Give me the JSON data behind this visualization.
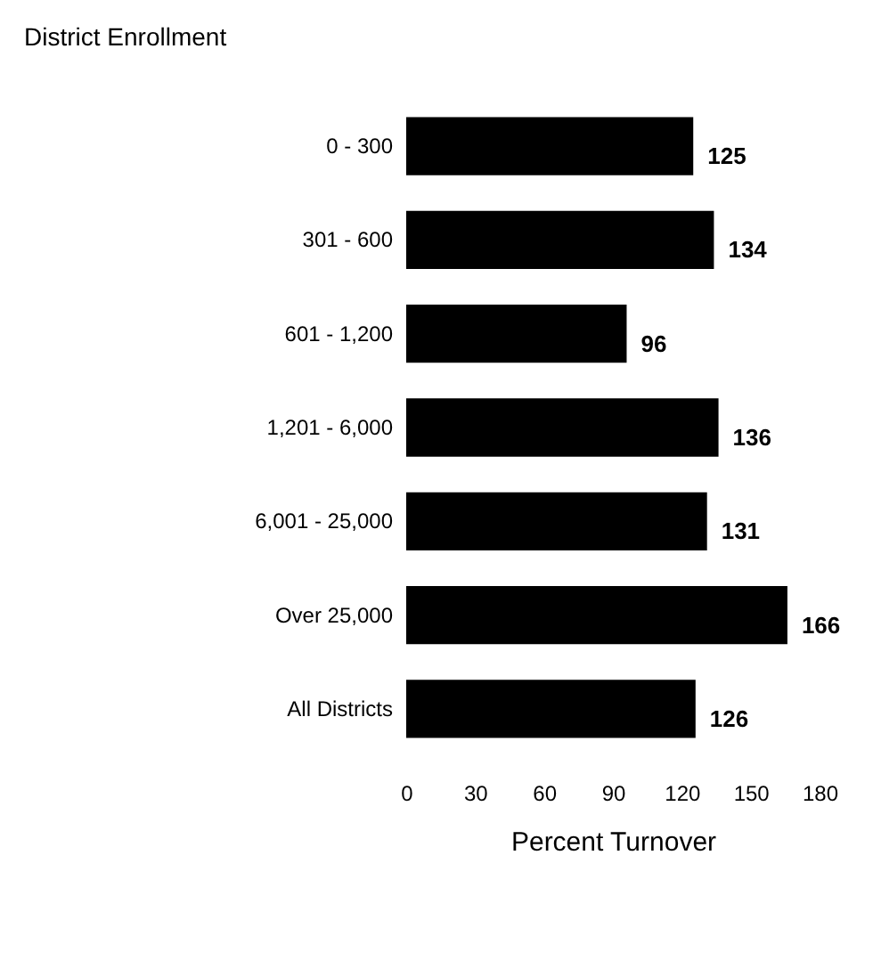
{
  "chart_data": {
    "type": "bar",
    "orientation": "horizontal",
    "ylabel": "District Enrollment",
    "xlabel": "Percent Turnover",
    "categories": [
      "0 - 300",
      "301 - 600",
      "601 - 1,200",
      "1,201 - 6,000",
      "6,001 - 25,000",
      "Over 25,000",
      "All Districts"
    ],
    "values": [
      125,
      134,
      96,
      136,
      131,
      166,
      126
    ],
    "color": "#000000",
    "xlim": [
      0,
      180
    ],
    "xticks": [
      0,
      30,
      60,
      90,
      120,
      150,
      180
    ],
    "data_labels": true
  }
}
